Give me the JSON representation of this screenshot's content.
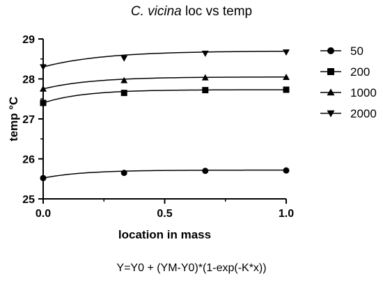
{
  "title": {
    "italic": "C. vicina",
    "rest": " loc vs temp"
  },
  "formula": "Y=Y0 + (YM-Y0)*(1-exp(-K*x))",
  "chart_data": {
    "type": "scatter",
    "title": "C. vicina loc vs temp",
    "xlabel": "location in mass",
    "ylabel": "temp °C",
    "xlim": [
      0,
      1.0
    ],
    "ylim": [
      25,
      29
    ],
    "xticks": [
      "0.0",
      "0.5",
      "1.0"
    ],
    "xtick_values": [
      0,
      0.5,
      1.0
    ],
    "yticks": [
      "25",
      "26",
      "27",
      "28",
      "29"
    ],
    "ytick_values": [
      25,
      26,
      27,
      28,
      29
    ],
    "legend_position": "right",
    "grid": false,
    "fit": "Y=Y0 + (YM-Y0)*(1-exp(-K*x))",
    "series": [
      {
        "name": "50",
        "marker": "circle",
        "x": [
          0,
          0.333,
          0.667,
          1.0
        ],
        "y": [
          25.52,
          25.65,
          25.7,
          25.71
        ],
        "fit": {
          "Y0": 25.52,
          "YM": 25.72,
          "K": 6
        }
      },
      {
        "name": "200",
        "marker": "square",
        "x": [
          0,
          0.333,
          0.667,
          1.0
        ],
        "y": [
          27.4,
          27.65,
          27.72,
          27.73
        ],
        "fit": {
          "Y0": 27.4,
          "YM": 27.73,
          "K": 6
        }
      },
      {
        "name": "1000",
        "marker": "triangle-up",
        "x": [
          0,
          0.333,
          0.667,
          1.0
        ],
        "y": [
          27.75,
          27.96,
          28.03,
          28.04
        ],
        "fit": {
          "Y0": 27.75,
          "YM": 28.05,
          "K": 5
        }
      },
      {
        "name": "2000",
        "marker": "triangle-down",
        "x": [
          0,
          0.333,
          0.667,
          1.0
        ],
        "y": [
          28.3,
          28.52,
          28.64,
          28.67
        ],
        "fit": {
          "Y0": 28.3,
          "YM": 28.7,
          "K": 4
        }
      }
    ]
  }
}
